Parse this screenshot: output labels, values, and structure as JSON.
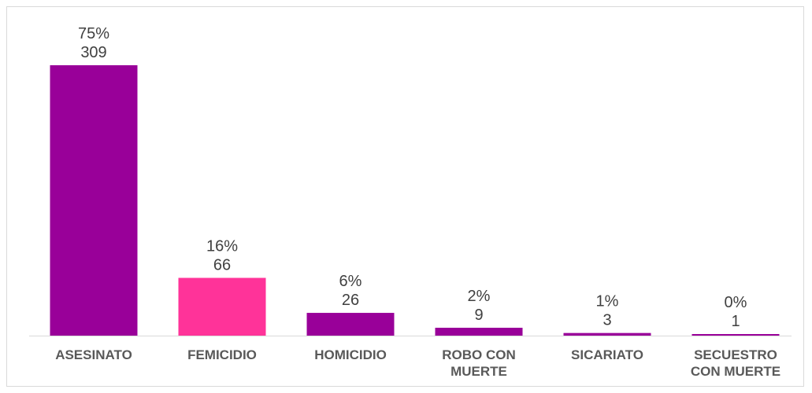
{
  "chart_data": {
    "type": "bar",
    "categories": [
      [
        "ASESINATO"
      ],
      [
        "FEMICIDIO"
      ],
      [
        "HOMICIDIO"
      ],
      [
        "ROBO CON",
        "MUERTE"
      ],
      [
        "SICARIATO"
      ],
      [
        "SECUESTRO",
        "CON MUERTE"
      ]
    ],
    "values": [
      309,
      66,
      26,
      9,
      3,
      1
    ],
    "percent_labels": [
      "75%",
      "16%",
      "6%",
      "2%",
      "1%",
      "0%"
    ],
    "count_labels": [
      "309",
      "66",
      "26",
      "9",
      "3",
      "1"
    ],
    "colors": [
      "#990099",
      "#ff3399",
      "#990099",
      "#990099",
      "#990099",
      "#990099"
    ],
    "ylim": [
      0,
      309
    ],
    "grid": false,
    "legend": "none",
    "title": "",
    "xlabel": "",
    "ylabel": ""
  }
}
